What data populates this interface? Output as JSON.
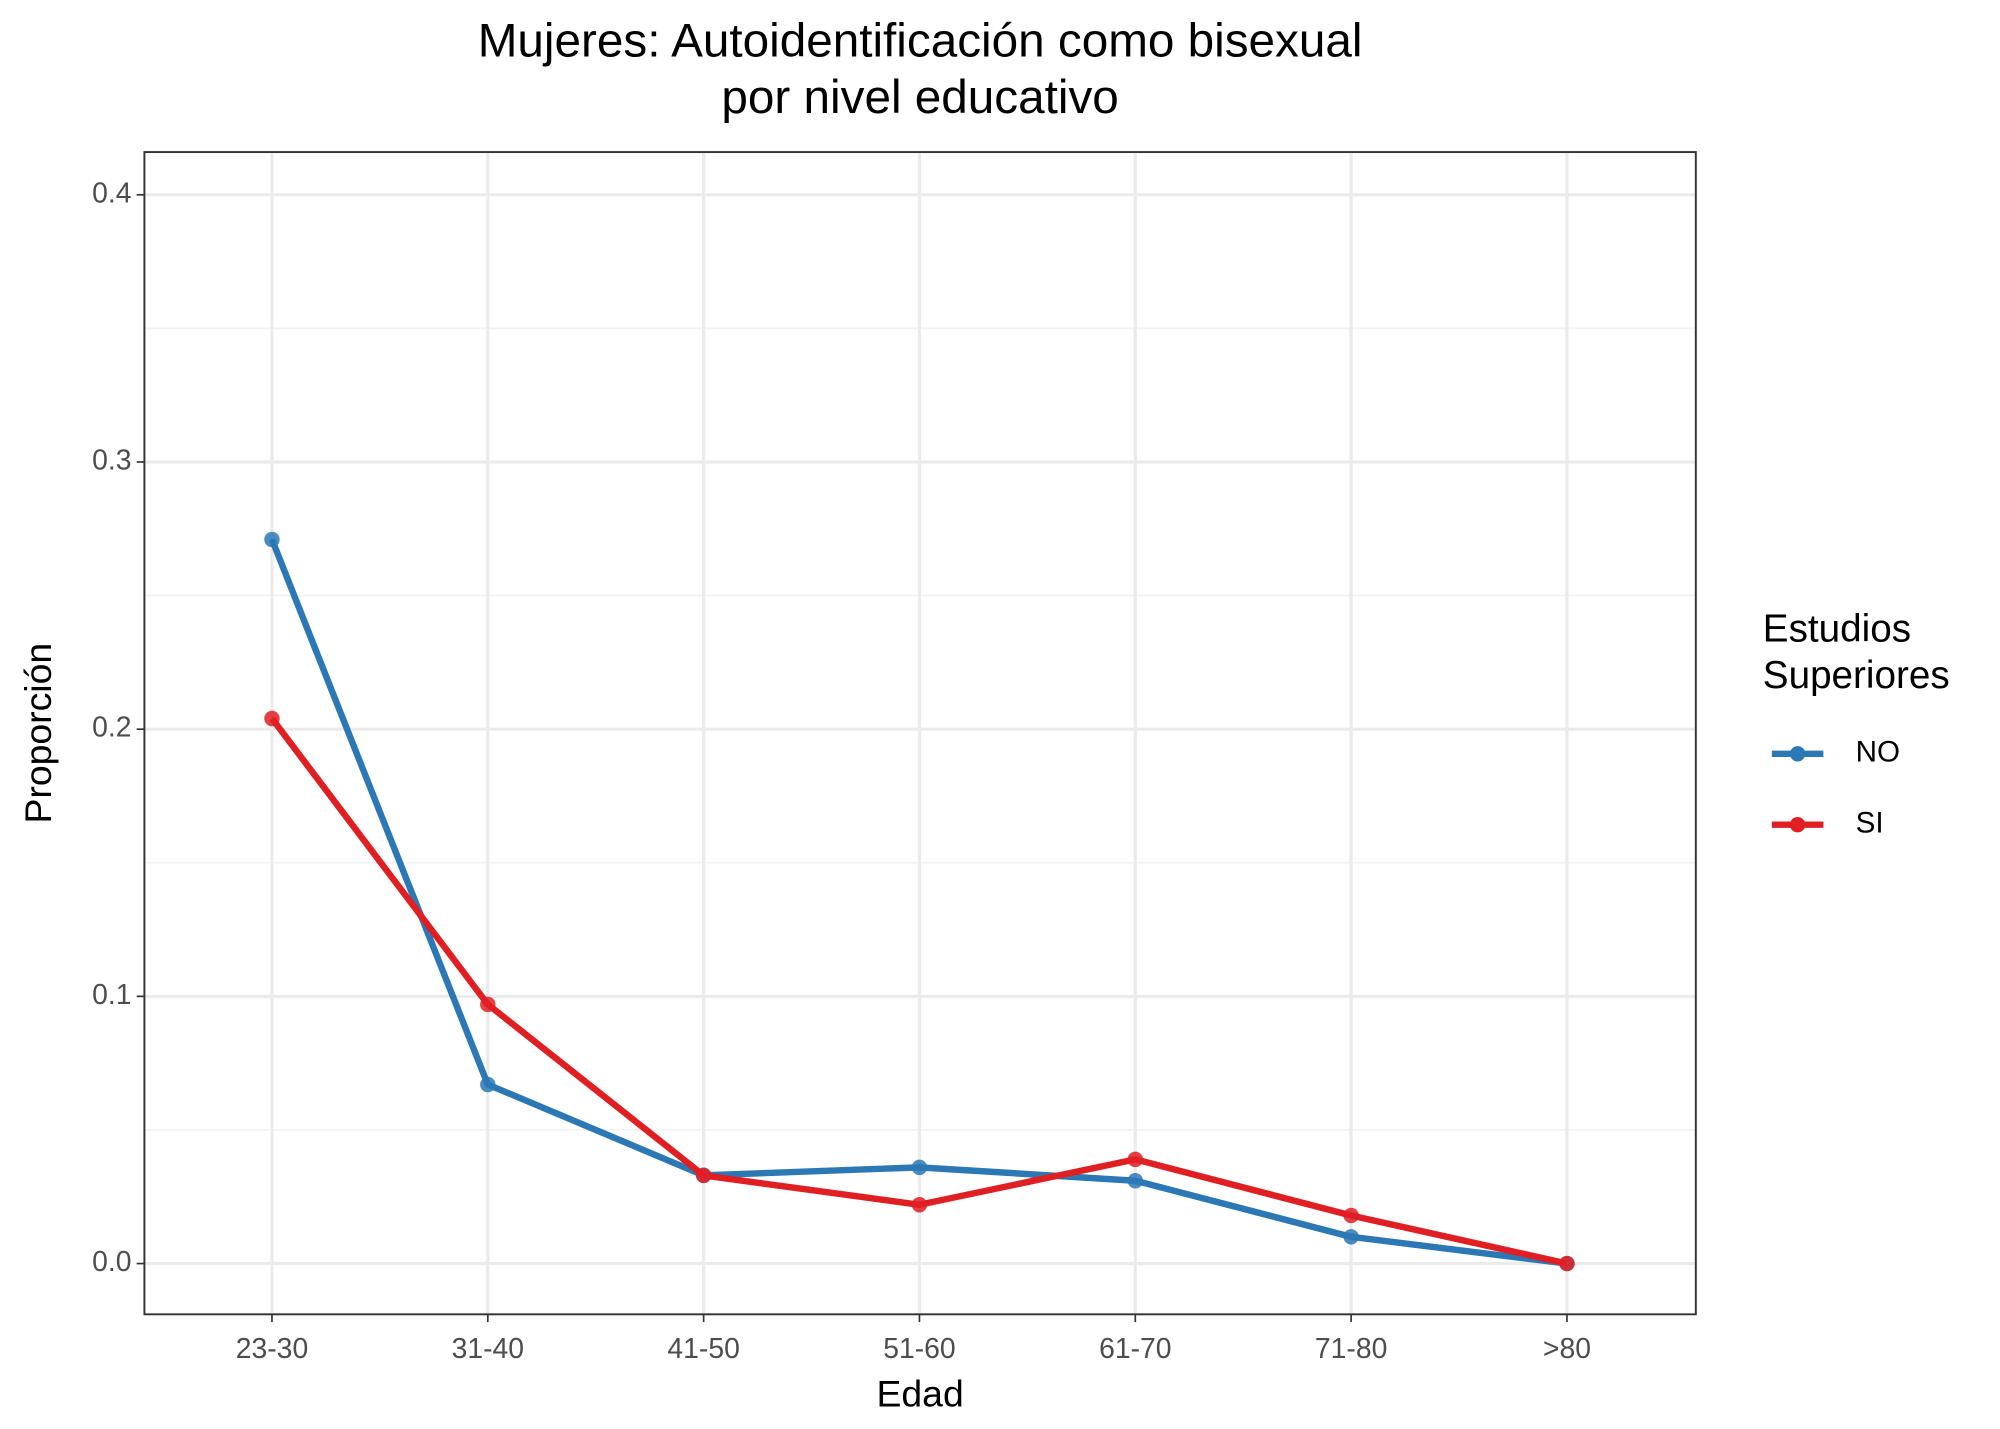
{
  "chart_data": {
    "type": "line",
    "title": [
      "Mujeres: Autoidentificación como bisexual",
      "por nivel educativo"
    ],
    "x_label": "Edad",
    "y_label": "Proporción",
    "legend_title": [
      "Estudios",
      "Superiores"
    ],
    "categories": [
      "23-30",
      "31-40",
      "41-50",
      "51-60",
      "61-70",
      "71-80",
      ">80"
    ],
    "series": [
      {
        "name": "NO",
        "color": "#2b78b5",
        "values": [
          0.271,
          0.067,
          0.033,
          0.036,
          0.031,
          0.01,
          0.0
        ]
      },
      {
        "name": "SI",
        "color": "#e01f23",
        "values": [
          0.204,
          0.097,
          0.033,
          0.022,
          0.039,
          0.018,
          0.0
        ]
      }
    ],
    "ylim": [
      -0.019,
      0.416
    ],
    "yticks": [
      0.0,
      0.1,
      0.2,
      0.3,
      0.4
    ],
    "grid": true,
    "legend": "right"
  }
}
